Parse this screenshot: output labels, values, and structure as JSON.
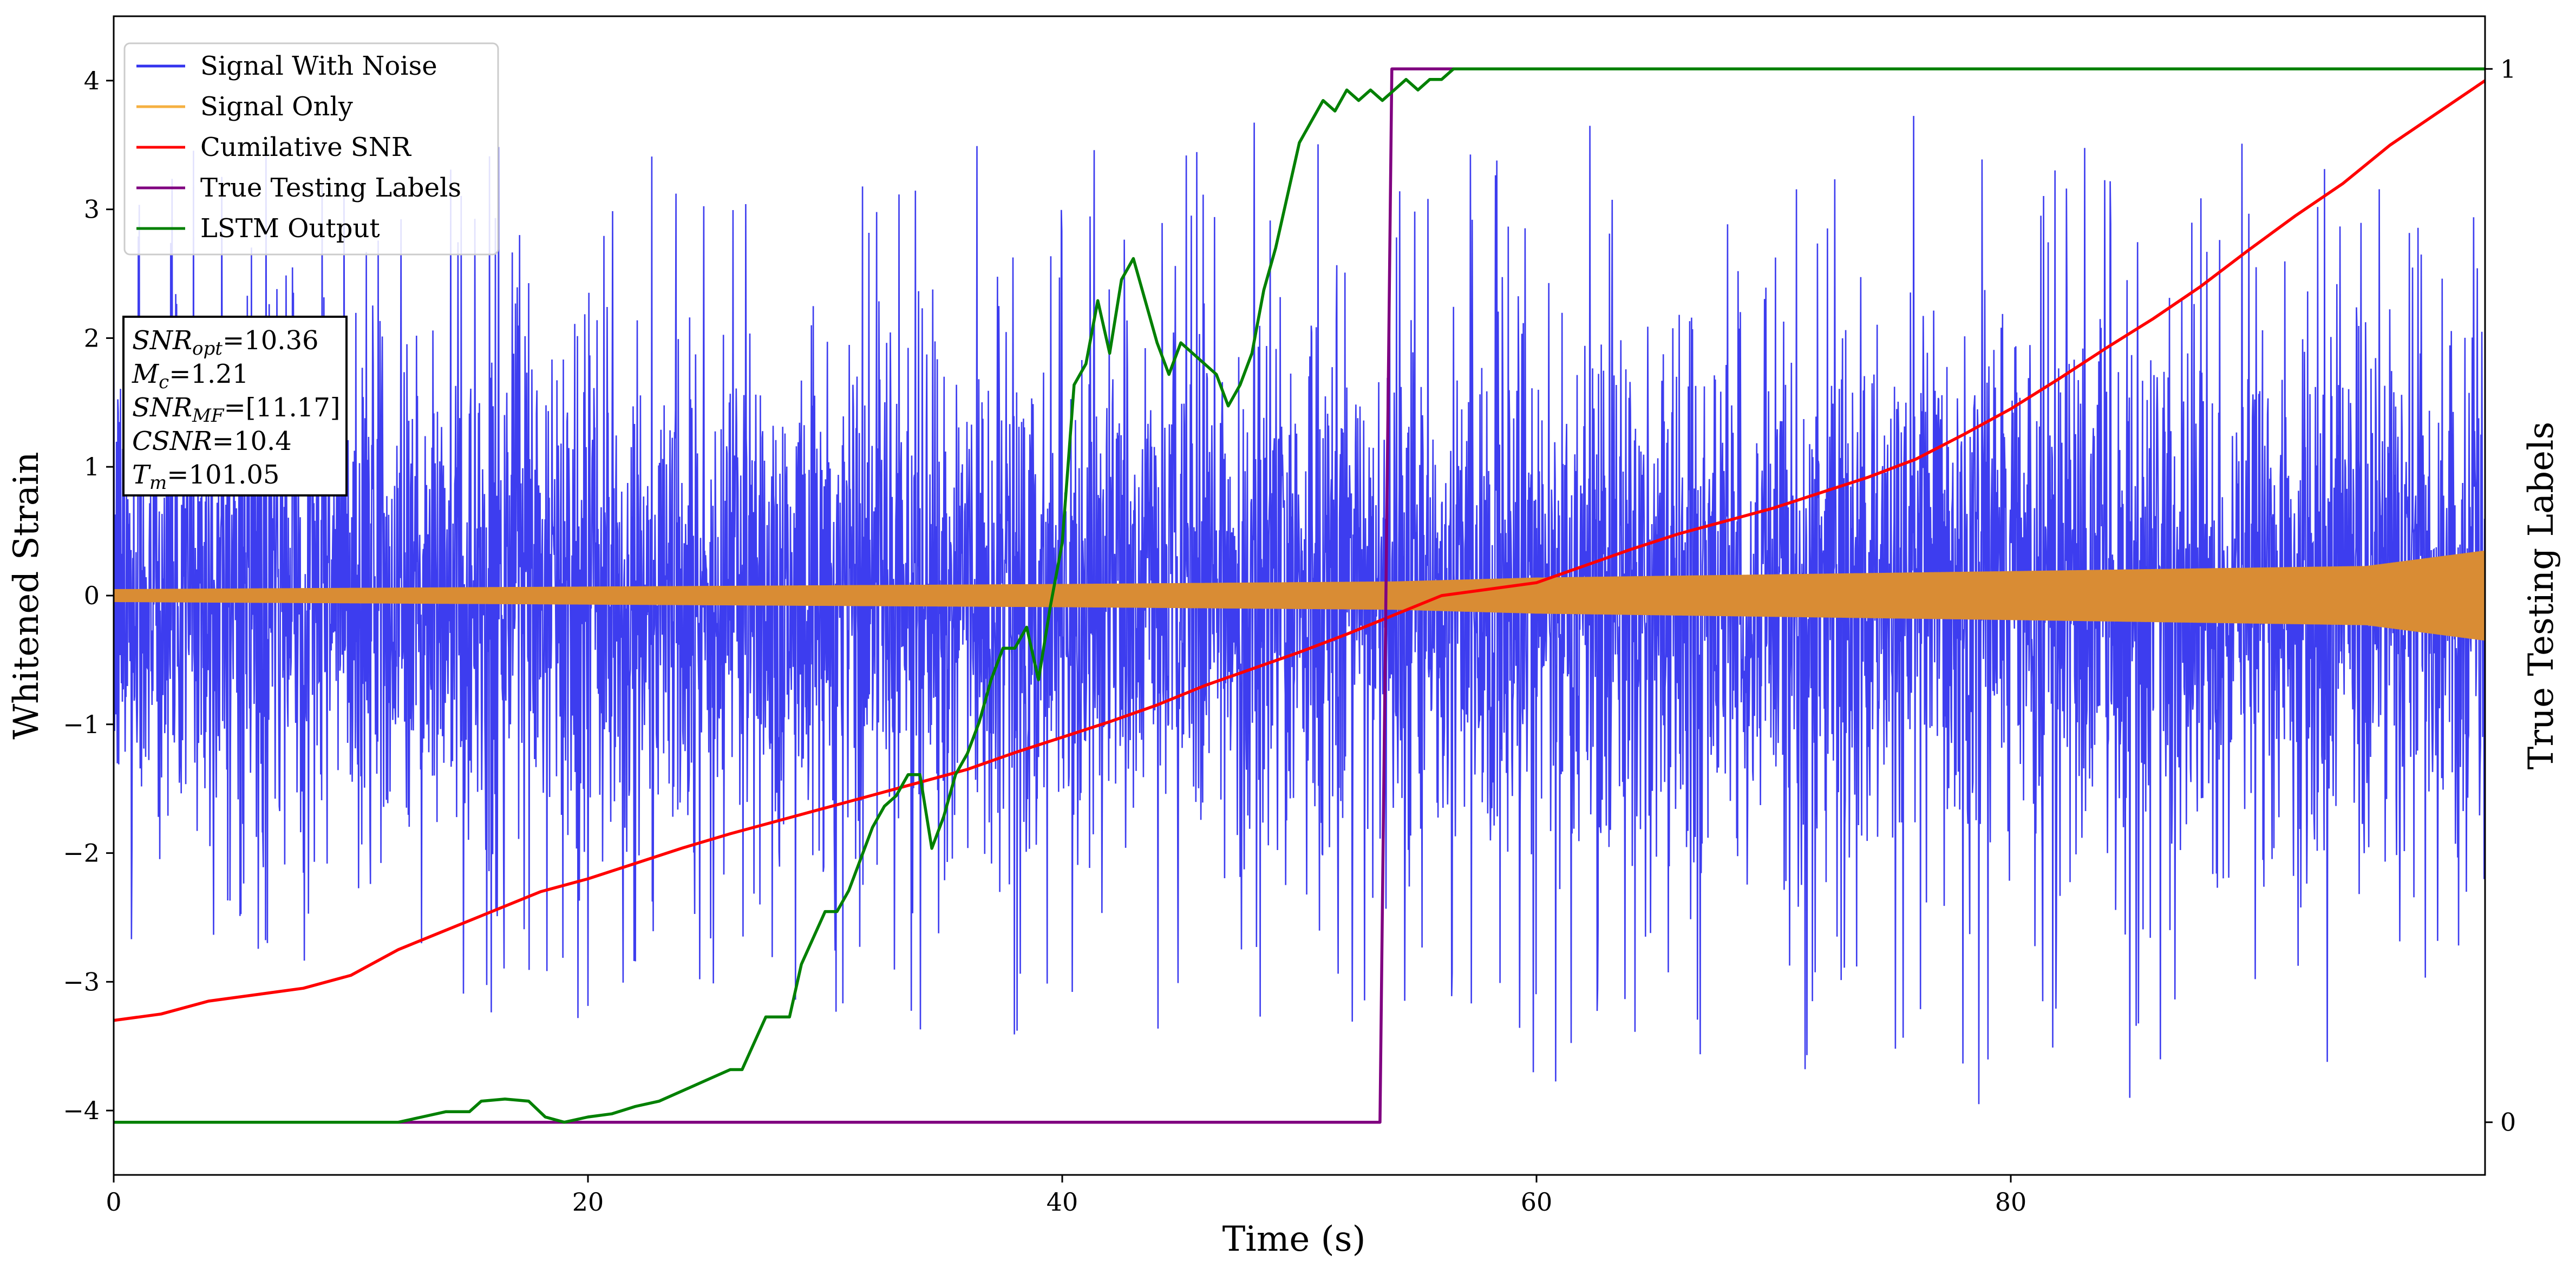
{
  "chart_data": {
    "type": "line",
    "xlabel": "Time (s)",
    "ylabel": "Whitened Strain",
    "y2label": "True Testing Labels",
    "xlim": [
      0,
      100
    ],
    "ylim": [
      -4.5,
      4.5
    ],
    "y2lim": [
      -0.05,
      1.05
    ],
    "xticks": [
      0,
      20,
      40,
      60,
      80
    ],
    "yticks": [
      -4,
      -3,
      -2,
      -1,
      0,
      1,
      2,
      3,
      4
    ],
    "y2ticks": [
      0,
      1
    ],
    "xtick_labels": [
      "0",
      "20",
      "40",
      "60",
      "80"
    ],
    "ytick_labels": [
      "−4",
      "−3",
      "−2",
      "−1",
      "0",
      "1",
      "2",
      "3",
      "4"
    ],
    "y2tick_labels": [
      "0",
      "1"
    ],
    "grid": false,
    "legend_position": "top-left",
    "legend": [
      {
        "label": "Signal With Noise",
        "color": "#3333ee"
      },
      {
        "label": "Signal Only",
        "color": "#f5b041"
      },
      {
        "label": "Cumilative SNR",
        "color": "#ff0000"
      },
      {
        "label": "True Testing Labels",
        "color": "#800080"
      },
      {
        "label": "LSTM Output",
        "color": "#008000"
      }
    ],
    "info_box": {
      "lines": [
        {
          "main": "SNR",
          "sub": "opt",
          "value": "=10.36"
        },
        {
          "main": "M",
          "sub": "c",
          "value": "=1.21"
        },
        {
          "main": "SNR",
          "sub": "MF",
          "value": "=[11.17]"
        },
        {
          "main": "CSNR",
          "sub": "",
          "value": "=10.4"
        },
        {
          "main": "T",
          "sub": "m",
          "value": "=101.05"
        }
      ]
    },
    "series": [
      {
        "name": "Signal With Noise",
        "color": "#3333ee",
        "axis": "left",
        "style": "noise",
        "envelope": {
          "x": [
            0,
            10,
            20,
            30,
            40,
            50,
            60,
            70,
            80,
            90,
            100
          ],
          "typical_amplitude": [
            1.5,
            1.6,
            1.55,
            1.6,
            1.6,
            1.7,
            1.7,
            1.65,
            1.7,
            1.7,
            1.6
          ],
          "max_peak": [
            3.8,
            3.6,
            3.5,
            3.3,
            3.6,
            3.8,
            3.7,
            3.6,
            3.9,
            3.5,
            3.1
          ],
          "min_peak": [
            -3.2,
            -3.0,
            -3.4,
            -3.3,
            -3.5,
            -3.4,
            -3.9,
            -3.7,
            -4.1,
            -3.8,
            -3.5
          ]
        }
      },
      {
        "name": "Signal Only",
        "color": "#d98c34",
        "axis": "left",
        "style": "band",
        "envelope": {
          "x": [
            0,
            20,
            40,
            54,
            60,
            80,
            95,
            100
          ],
          "amplitude": [
            0.05,
            0.07,
            0.09,
            0.11,
            0.14,
            0.19,
            0.23,
            0.35
          ]
        }
      },
      {
        "name": "Cumilative SNR",
        "color": "#ff0000",
        "axis": "left",
        "x": [
          0,
          2,
          4,
          6,
          8,
          10,
          12,
          14,
          16,
          18,
          20,
          22,
          24,
          26,
          28,
          30,
          32,
          34,
          36,
          38,
          40,
          42,
          44,
          46,
          48,
          50,
          52,
          54,
          56,
          58,
          60,
          62,
          64,
          66,
          68,
          70,
          72,
          74,
          76,
          78,
          80,
          82,
          84,
          86,
          88,
          90,
          92,
          94,
          96,
          98,
          100
        ],
        "y": [
          -3.3,
          -3.25,
          -3.15,
          -3.1,
          -3.05,
          -2.95,
          -2.75,
          -2.6,
          -2.45,
          -2.3,
          -2.2,
          -2.08,
          -1.96,
          -1.85,
          -1.75,
          -1.65,
          -1.55,
          -1.45,
          -1.35,
          -1.22,
          -1.1,
          -0.98,
          -0.85,
          -0.7,
          -0.57,
          -0.44,
          -0.3,
          -0.15,
          0.0,
          0.05,
          0.1,
          0.23,
          0.36,
          0.48,
          0.58,
          0.68,
          0.8,
          0.92,
          1.06,
          1.25,
          1.45,
          1.68,
          1.92,
          2.15,
          2.4,
          2.68,
          2.95,
          3.2,
          3.5,
          3.75,
          4.0
        ]
      },
      {
        "name": "True Testing Labels",
        "color": "#800080",
        "axis": "right",
        "x": [
          0,
          53.4,
          53.9,
          100
        ],
        "y": [
          0,
          0,
          1,
          1
        ]
      },
      {
        "name": "LSTM Output",
        "color": "#008000",
        "axis": "right",
        "x": [
          0,
          12,
          13,
          14,
          15,
          15.5,
          16.5,
          17.5,
          18.2,
          19,
          20,
          21,
          22,
          23,
          24,
          25,
          26,
          26.5,
          27.5,
          28.5,
          29,
          30,
          30.5,
          31,
          32,
          32.5,
          33,
          33.5,
          34,
          34.5,
          35,
          35.5,
          36,
          36.5,
          37,
          37.5,
          38,
          38.5,
          39,
          39.5,
          40,
          40.5,
          41,
          41.5,
          42,
          42.5,
          43,
          43.5,
          44,
          44.5,
          45,
          45.5,
          46,
          46.5,
          47,
          47.5,
          48,
          48.5,
          49,
          49.5,
          50,
          50.5,
          51,
          51.5,
          52,
          52.5,
          53,
          53.5,
          54,
          54.5,
          55,
          55.5,
          56,
          56.5,
          57,
          58,
          59,
          60,
          61,
          62,
          63,
          64,
          65,
          66,
          67,
          68,
          69,
          70,
          71,
          72,
          73,
          74,
          75,
          76,
          77,
          78,
          79,
          80,
          82,
          84,
          86,
          88,
          90,
          92,
          94,
          96,
          98,
          100
        ],
        "y": [
          0,
          0,
          0.005,
          0.01,
          0.01,
          0.02,
          0.022,
          0.02,
          0.005,
          0.0,
          0.005,
          0.008,
          0.015,
          0.02,
          0.03,
          0.04,
          0.05,
          0.05,
          0.1,
          0.1,
          0.15,
          0.2,
          0.2,
          0.22,
          0.28,
          0.3,
          0.31,
          0.33,
          0.33,
          0.26,
          0.29,
          0.33,
          0.35,
          0.38,
          0.42,
          0.45,
          0.45,
          0.47,
          0.42,
          0.49,
          0.55,
          0.7,
          0.72,
          0.78,
          0.73,
          0.8,
          0.82,
          0.78,
          0.74,
          0.71,
          0.74,
          0.73,
          0.72,
          0.71,
          0.68,
          0.7,
          0.73,
          0.79,
          0.83,
          0.88,
          0.93,
          0.95,
          0.97,
          0.96,
          0.98,
          0.97,
          0.98,
          0.97,
          0.98,
          0.99,
          0.98,
          0.99,
          0.99,
          1.0,
          1.0,
          1.0,
          1.0,
          1.0,
          1.0,
          1.0,
          1.0,
          1.0,
          1.0,
          1.0,
          1.0,
          1.0,
          1.0,
          1.0,
          1.0,
          1.0,
          1.0,
          1.0,
          1.0,
          1.0,
          1.0,
          1.0,
          1.0,
          1.0,
          1.0,
          1.0,
          1.0,
          1.0,
          1.0,
          1.0,
          1.0,
          1.0,
          1.0,
          1.0
        ]
      }
    ]
  }
}
